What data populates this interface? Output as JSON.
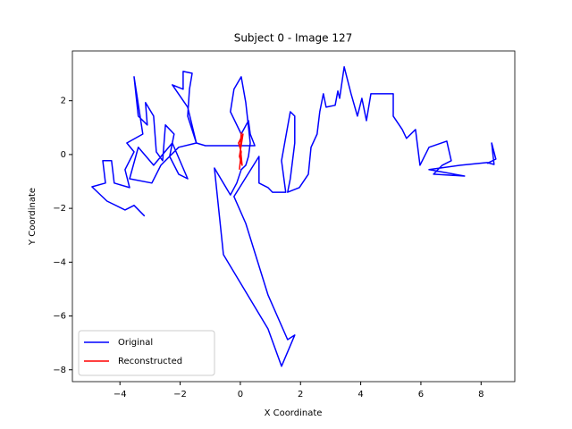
{
  "chart_data": {
    "type": "line",
    "title": "Subject 0 - Image 127",
    "x_label": "X Coordinate",
    "y_label": "Y Coordinate",
    "xlim": [
      -5.58,
      9.12
    ],
    "ylim": [
      -8.44,
      3.85
    ],
    "xticks": [
      {
        "value": -4,
        "label": "−4"
      },
      {
        "value": -2,
        "label": "−2"
      },
      0,
      2,
      4,
      6,
      8
    ],
    "yticks": [
      {
        "value": -8,
        "label": "−8"
      },
      {
        "value": -6,
        "label": "−6"
      },
      {
        "value": -4,
        "label": "−4"
      },
      {
        "value": -2,
        "label": "−2"
      },
      0,
      2
    ],
    "legend": "lower left",
    "series": [
      {
        "name": "Original",
        "color": "#0000ff",
        "x": [
          -3.18,
          -3.53,
          -3.83,
          -4.43,
          -4.93,
          -4.48,
          -4.57,
          -4.28,
          -4.19,
          -3.68,
          -3.83,
          -3.53,
          -3.77,
          -3.24,
          -3.53,
          -3.39,
          -3.09,
          -3.15,
          -2.88,
          -2.79,
          -2.58,
          -2.49,
          -2.2,
          -2.35,
          -2.05,
          -1.75,
          -2.26,
          -2.88,
          -3.39,
          -3.68,
          -2.94,
          -2.64,
          -2.05,
          -1.46,
          -1.75,
          -2.26,
          -1.9,
          -1.9,
          -1.6,
          -1.69,
          -1.75,
          -1.46,
          -1.16,
          0.48,
          0.33,
          0.27,
          0.03,
          -0.33,
          -0.21,
          0.03,
          0.18,
          0.33,
          0.27,
          0.18,
          0.03,
          -0.12,
          -0.33,
          -0.86,
          -0.56,
          0.92,
          1.37,
          1.81,
          1.57,
          0.92,
          0.18,
          -0.21,
          0.62,
          0.62,
          0.92,
          1.07,
          1.51,
          1.37,
          1.66,
          1.81,
          1.81,
          1.66,
          1.57,
          1.96,
          2.26,
          2.35,
          2.55,
          2.64,
          2.76,
          2.85,
          3.15,
          3.24,
          3.3,
          3.45,
          3.68,
          3.89,
          4.04,
          4.19,
          4.34,
          4.63,
          5.08,
          5.08,
          5.38,
          5.52,
          5.82,
          5.97,
          6.27,
          6.86,
          7.01,
          6.71,
          6.42,
          7.45,
          6.27,
          7.31,
          8.2,
          8.43,
          8.35,
          8.49,
          8.2
        ],
        "values": [
          -2.29,
          -1.89,
          -2.06,
          -1.73,
          -1.2,
          -1.06,
          -0.23,
          -0.23,
          -1.06,
          -1.23,
          -0.56,
          0.1,
          0.43,
          0.76,
          2.89,
          1.43,
          1.1,
          1.93,
          1.43,
          0.1,
          -0.23,
          1.1,
          0.76,
          -0.07,
          -0.73,
          -0.9,
          0.43,
          -0.4,
          0.27,
          -0.9,
          -1.06,
          -0.4,
          0.27,
          0.43,
          1.76,
          2.59,
          2.43,
          3.09,
          3.02,
          2.43,
          1.43,
          0.43,
          0.33,
          0.33,
          0.76,
          1.26,
          0.76,
          1.59,
          2.43,
          2.89,
          1.93,
          0.43,
          -0.07,
          -0.4,
          -0.56,
          -1.06,
          -1.5,
          -0.5,
          -3.72,
          -6.48,
          -7.87,
          -6.71,
          -6.88,
          -5.22,
          -2.56,
          -1.56,
          -0.07,
          -1.06,
          -1.23,
          -1.4,
          -1.4,
          -0.23,
          1.59,
          1.43,
          0.43,
          -0.9,
          -1.4,
          -1.23,
          -0.73,
          0.27,
          0.76,
          1.59,
          2.26,
          1.76,
          1.83,
          2.36,
          2.09,
          3.26,
          2.26,
          1.43,
          2.09,
          1.26,
          2.26,
          2.26,
          2.26,
          1.43,
          0.93,
          0.6,
          0.93,
          -0.4,
          0.27,
          0.5,
          -0.23,
          -0.4,
          -0.73,
          -0.8,
          -0.56,
          -0.4,
          -0.3,
          -0.37,
          0.43,
          -0.17,
          -0.33
        ]
      },
      {
        "name": "Reconstructed",
        "color": "#ff0000",
        "x": [
          -0.03,
          0.03,
          -0.06,
          0.09,
          -0.03,
          0.06,
          0.0,
          0.03
        ],
        "values": [
          -0.56,
          0.1,
          0.43,
          0.76,
          -0.07,
          -0.4,
          0.27,
          0.83
        ]
      }
    ]
  }
}
